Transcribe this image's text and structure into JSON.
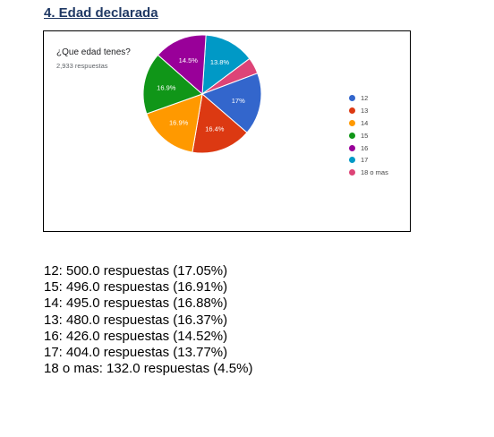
{
  "section_heading": "4. Edad declarada",
  "question": {
    "title": "¿Que edad tenes?",
    "responses": "2,933 respuestas"
  },
  "chart_data": {
    "type": "pie",
    "title": "¿Que edad tenes?",
    "legend_position": "right",
    "slices": [
      {
        "label": "12",
        "value": 500,
        "percent_label": "17%",
        "color": "#3366cc"
      },
      {
        "label": "13",
        "value": 480,
        "percent_label": "16.4%",
        "color": "#dc3912"
      },
      {
        "label": "14",
        "value": 495,
        "percent_label": "16.9%",
        "color": "#ff9900"
      },
      {
        "label": "15",
        "value": 496,
        "percent_label": "16.9%",
        "color": "#109618"
      },
      {
        "label": "16",
        "value": 426,
        "percent_label": "14.5%",
        "color": "#990099"
      },
      {
        "label": "17",
        "value": 404,
        "percent_label": "13.8%",
        "color": "#0099c6"
      },
      {
        "label": "18 o mas",
        "value": 132,
        "percent_label": "",
        "color": "#dd4477"
      }
    ]
  },
  "summary": [
    "12: 500.0 respuestas (17.05%)",
    "15: 496.0 respuestas (16.91%)",
    "14: 495.0 respuestas (16.88%)",
    "13: 480.0 respuestas (16.37%)",
    "16: 426.0 respuestas (14.52%)",
    "17: 404.0 respuestas (13.77%)",
    "18 o mas: 132.0 respuestas (4.5%)"
  ]
}
